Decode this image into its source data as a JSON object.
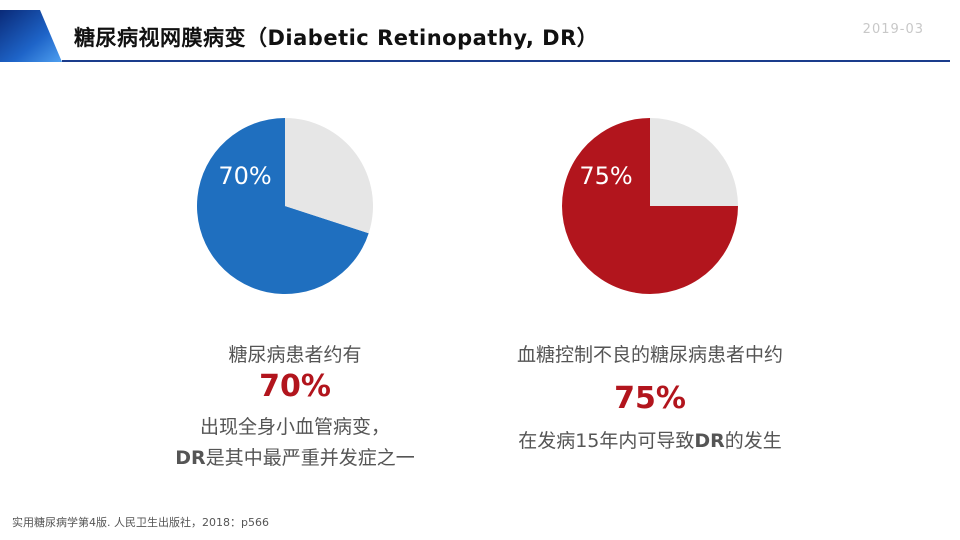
{
  "header": {
    "title": "糖尿病视网膜病变（Diabetic Retinopathy, DR）",
    "date": "2019-03",
    "accent_color": "#1a3c8c"
  },
  "chart_data": [
    {
      "type": "pie",
      "title": "",
      "slices": [
        {
          "label": "70%",
          "value": 70,
          "color": "#1f6fbf"
        },
        {
          "label": "",
          "value": 30,
          "color": "#e6e6e6"
        }
      ]
    },
    {
      "type": "pie",
      "title": "",
      "slices": [
        {
          "label": "75%",
          "value": 75,
          "color": "#b2151d"
        },
        {
          "label": "",
          "value": 25,
          "color": "#e6e6e6"
        }
      ]
    }
  ],
  "left_caption": {
    "line1": "糖尿病患者约有",
    "percent": "70%",
    "line2": "出现全身小血管病变，",
    "line3_bold": "DR",
    "line3_rest": "是其中最严重并发症之一"
  },
  "right_caption": {
    "line1": "血糖控制不良的糖尿病患者中约",
    "percent": "75%",
    "line2_pre": "在发病15年内可导致",
    "line2_bold": "DR",
    "line2_post": "的发生"
  },
  "footnote": "实用糖尿病学第4版. 人民卫生出版社，2018：p566"
}
